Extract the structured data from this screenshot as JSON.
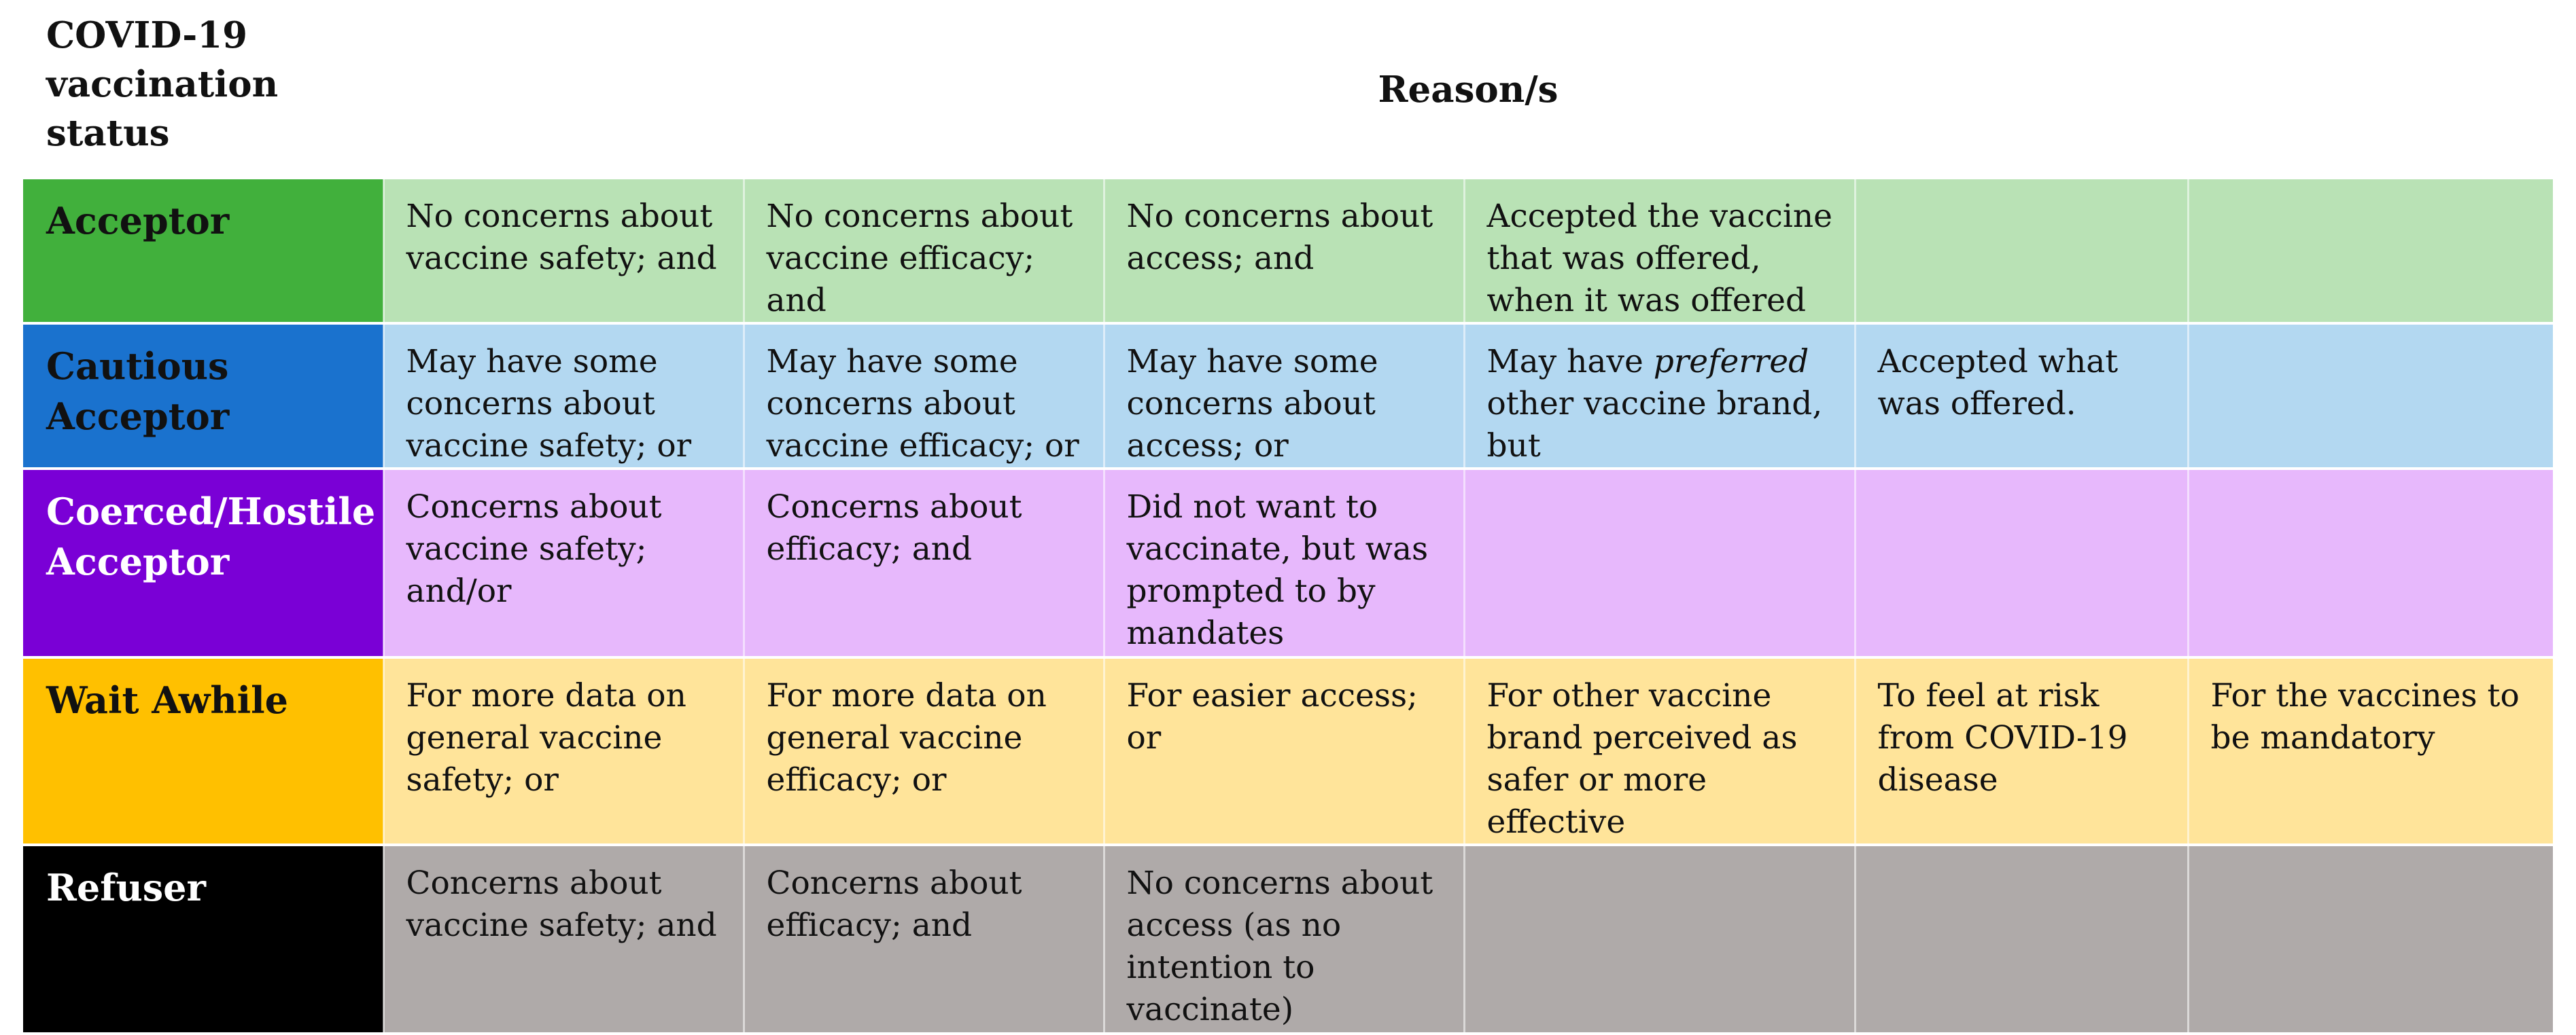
{
  "header": {
    "status_col": "COVID-19 vaccination status",
    "reasons_col": "Reason/s"
  },
  "colors": {
    "acceptor": "#41B03C",
    "cautious": "#1A72CE",
    "coerced": "#7A00D6",
    "wait": "#FFC000",
    "refuser": "#000000"
  },
  "rows": [
    {
      "status": "Acceptor",
      "reasons": [
        "No concerns about vaccine safety; and",
        "No concerns about vaccine efficacy; and",
        "No concerns about access; and",
        "Accepted the vaccine that was offered, when it was offered",
        "",
        ""
      ]
    },
    {
      "status": "Cautious Acceptor",
      "reasons": [
        "May have some concerns about vaccine safety; or",
        "May have some concerns about vaccine efficacy; or",
        "May have some concerns about access; or",
        "",
        "Accepted what was offered.",
        ""
      ],
      "preferred": {
        "pre": "May have ",
        "em": "preferred",
        "post": " other vaccine brand, but"
      }
    },
    {
      "status": "Coerced/Hostile Acceptor",
      "reasons": [
        "Concerns about vaccine safety; and/or",
        "Concerns about efficacy; and",
        "Did not want to vaccinate, but was prompted to by mandates",
        "",
        "",
        ""
      ]
    },
    {
      "status": "Wait Awhile",
      "reasons": [
        "For more data on general vaccine safety; or",
        "For more data on general vaccine efficacy; or",
        "For easier access; or",
        "For other vaccine brand perceived as safer or more effective",
        "To feel at risk from COVID-19 disease",
        "For the vaccines to be mandatory"
      ]
    },
    {
      "status": "Refuser",
      "reasons": [
        "Concerns about vaccine safety; and",
        "Concerns about efficacy; and",
        "No concerns about access (as no intention to vaccinate)",
        "",
        "",
        ""
      ]
    }
  ]
}
